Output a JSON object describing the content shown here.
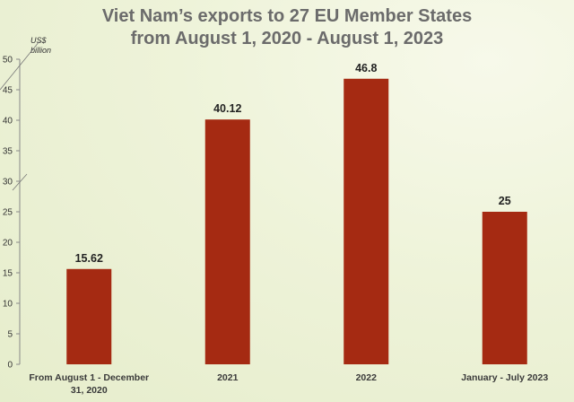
{
  "chart_data": {
    "type": "bar",
    "title_line1": "Viet Nam’s exports to 27 EU Member States",
    "title_line2": "from August 1, 2020 - August 1, 2023",
    "unit_line1": "US$",
    "unit_line2": "billion",
    "categories": [
      [
        "From August 1 - December",
        "31, 2020"
      ],
      [
        "2021"
      ],
      [
        "2022"
      ],
      [
        "January - July 2023"
      ]
    ],
    "values": [
      15.62,
      40.12,
      46.8,
      25
    ],
    "value_labels": [
      "15.62",
      "40.12",
      "46.8",
      "25"
    ],
    "ylim": [
      0,
      50
    ],
    "yticks": [
      0,
      5,
      10,
      15,
      20,
      25,
      30,
      35,
      40,
      45,
      50
    ],
    "bar_color": "#a52a12",
    "grid": false
  }
}
